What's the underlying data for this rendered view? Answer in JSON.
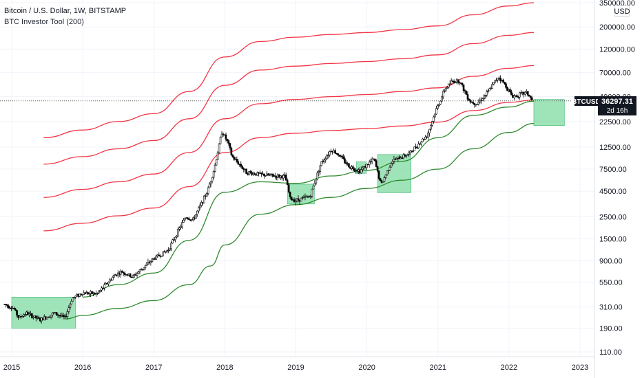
{
  "header": {
    "title": "Bitcoin / U.S. Dollar, 1W, BITSTAMP",
    "indicator": "BTC Investor Tool (200)"
  },
  "price_scale": {
    "currency": "USD",
    "symbol_label": "BTCUSD",
    "last_price": "36297.31",
    "countdown": "2d 16h"
  },
  "colors": {
    "red_band": "#f23645",
    "green_band": "#2e8b2e",
    "candles": "#000000",
    "highlight_fill": "#7fdba0",
    "highlight_stroke": "#3cb371",
    "price_label_bg": "#131722"
  },
  "chart_data": {
    "type": "line",
    "scale": "log",
    "xlim": [
      2015.0,
      2023.3
    ],
    "ylim": [
      100,
      350000
    ],
    "x_ticks": [
      {
        "x": 2015,
        "label": "2015"
      },
      {
        "x": 2016,
        "label": "2016"
      },
      {
        "x": 2017,
        "label": "2017"
      },
      {
        "x": 2018,
        "label": "2018"
      },
      {
        "x": 2019,
        "label": "2019"
      },
      {
        "x": 2020,
        "label": "2020"
      },
      {
        "x": 2021,
        "label": "2021"
      },
      {
        "x": 2022,
        "label": "2022"
      },
      {
        "x": 2023,
        "label": "2023"
      }
    ],
    "y_ticks": [
      {
        "y": 350000,
        "label": "350000.00"
      },
      {
        "y": 200000,
        "label": "200000.00"
      },
      {
        "y": 120000,
        "label": "120000.00"
      },
      {
        "y": 70000,
        "label": "70000.00"
      },
      {
        "y": 40000,
        "label": "40000.00"
      },
      {
        "y": 22500,
        "label": "22500.00"
      },
      {
        "y": 12500,
        "label": "12500.00"
      },
      {
        "y": 7500,
        "label": "7500.00"
      },
      {
        "y": 4500,
        "label": "4500.00"
      },
      {
        "y": 2500,
        "label": "2500.00"
      },
      {
        "y": 1500,
        "label": "1500.00"
      },
      {
        "y": 900,
        "label": "900.00"
      },
      {
        "y": 550,
        "label": "550.00"
      },
      {
        "y": 310,
        "label": "310.00"
      },
      {
        "y": 190,
        "label": "190.00"
      },
      {
        "y": 110,
        "label": "110.00"
      }
    ],
    "last_value": 36297.31,
    "red_bands": [
      {
        "x": [
          2015.45,
          2016.0,
          2016.5,
          2017.0,
          2017.5,
          2018.0,
          2018.5,
          2019.0,
          2019.5,
          2020.0,
          2020.5,
          2021.0,
          2021.5,
          2022.0,
          2022.35
        ],
        "y": [
          15500,
          18500,
          22500,
          27000,
          45000,
          100000,
          143000,
          158000,
          168000,
          176000,
          188000,
          205000,
          265000,
          325000,
          350000
        ]
      },
      {
        "x": [
          2015.45,
          2016.0,
          2016.5,
          2017.0,
          2017.5,
          2018.0,
          2018.5,
          2019.0,
          2019.5,
          2020.0,
          2020.5,
          2021.0,
          2021.5,
          2022.0,
          2022.35
        ],
        "y": [
          8400,
          10000,
          12000,
          14500,
          24000,
          52000,
          74000,
          81000,
          86000,
          90000,
          96000,
          105000,
          136000,
          165000,
          176000
        ]
      },
      {
        "x": [
          2015.45,
          2016.0,
          2016.5,
          2017.0,
          2017.5,
          2018.0,
          2018.5,
          2019.0,
          2019.5,
          2020.0,
          2020.5,
          2021.0,
          2021.5,
          2022.0,
          2022.35
        ],
        "y": [
          3900,
          4700,
          5600,
          6700,
          11000,
          24000,
          34000,
          37500,
          40000,
          42000,
          45000,
          49000,
          64000,
          77000,
          82000
        ]
      },
      {
        "x": [
          2015.45,
          2016.0,
          2016.5,
          2017.0,
          2017.5,
          2018.0,
          2018.5,
          2019.0,
          2019.5,
          2020.0,
          2020.5,
          2021.0,
          2021.5,
          2022.0,
          2022.35
        ],
        "y": [
          1800,
          2150,
          2550,
          3050,
          5000,
          11000,
          15500,
          17200,
          18300,
          19100,
          20300,
          22200,
          29000,
          35000,
          37000
        ]
      }
    ],
    "green_bands": [
      {
        "x": [
          2016.0,
          2016.5,
          2017.0,
          2017.5,
          2018.0,
          2018.5,
          2019.0,
          2019.5,
          2020.0,
          2020.5,
          2021.0,
          2021.5,
          2022.0,
          2022.35
        ],
        "y": [
          390,
          520,
          680,
          1450,
          4400,
          5600,
          5400,
          6400,
          7300,
          9000,
          15500,
          26000,
          31500,
          36000
        ]
      },
      {
        "x": [
          2015.75,
          2016.0,
          2016.5,
          2017.0,
          2017.5,
          2017.8,
          2018.0,
          2018.5,
          2019.0,
          2019.5,
          2020.0,
          2020.5,
          2021.0,
          2021.5,
          2022.0,
          2022.35
        ],
        "y": [
          235,
          255,
          300,
          360,
          520,
          800,
          1300,
          2650,
          3300,
          3900,
          4800,
          5800,
          7500,
          12000,
          17500,
          21500
        ]
      }
    ],
    "highlight_zones": [
      {
        "x0": 2015.0,
        "x1": 2015.9,
        "y0": 190,
        "y1": 390
      },
      {
        "x0": 2018.88,
        "x1": 2019.26,
        "y0": 3350,
        "y1": 5300
      },
      {
        "x0": 2019.85,
        "x1": 2019.99,
        "y0": 6800,
        "y1": 8900
      },
      {
        "x0": 2020.15,
        "x1": 2020.62,
        "y0": 4350,
        "y1": 10500
      },
      {
        "x0": 2022.35,
        "x1": 2022.78,
        "y0": 20500,
        "y1": 37500
      }
    ],
    "price_path": {
      "x": [
        2014.9,
        2015.03,
        2015.1,
        2015.2,
        2015.4,
        2015.6,
        2015.75,
        2015.85,
        2016.0,
        2016.2,
        2016.45,
        2016.55,
        2016.7,
        2017.0,
        2017.2,
        2017.45,
        2017.55,
        2017.75,
        2017.85,
        2017.96,
        2018.05,
        2018.1,
        2018.2,
        2018.3,
        2018.45,
        2018.6,
        2018.85,
        2018.92,
        2019.0,
        2019.2,
        2019.35,
        2019.5,
        2019.6,
        2019.75,
        2019.9,
        2020.1,
        2020.2,
        2020.35,
        2020.6,
        2020.85,
        2020.97,
        2021.1,
        2021.2,
        2021.3,
        2021.45,
        2021.55,
        2021.7,
        2021.85,
        2021.95,
        2022.05,
        2022.15,
        2022.25,
        2022.33
      ],
      "y": [
        330,
        300,
        240,
        270,
        230,
        270,
        240,
        380,
        430,
        420,
        650,
        700,
        620,
        950,
        1150,
        2500,
        2300,
        4400,
        7500,
        18000,
        13500,
        10000,
        8500,
        7000,
        6700,
        6500,
        6300,
        3800,
        3650,
        4000,
        8500,
        11800,
        10500,
        8000,
        7200,
        9500,
        5200,
        9000,
        10800,
        16500,
        29000,
        48000,
        57000,
        58000,
        36000,
        34000,
        44000,
        64000,
        52000,
        40000,
        42000,
        44000,
        36300
      ]
    }
  }
}
